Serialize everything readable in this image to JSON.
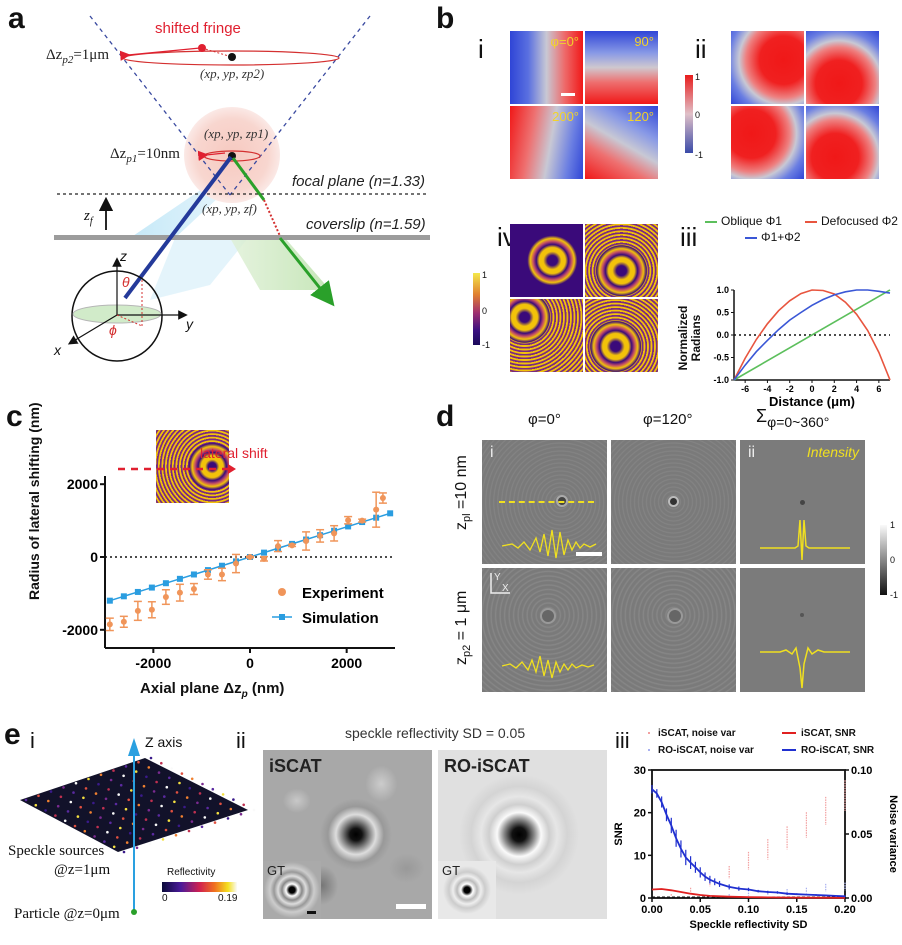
{
  "panel_labels": {
    "a": "a",
    "b": "b",
    "c": "c",
    "d": "d",
    "e": "e"
  },
  "panel_a": {
    "shifted_fringe": "shifted fringe",
    "dz_p2": "Δz",
    "dz_p2_sub": "p2",
    "dz_p2_val": "=1μm",
    "coord_p2": "(x",
    "coord_p2_full": "(xp, yp, zp2)",
    "coord_p1_full": "(xp, yp, zp1)",
    "coord_f_full": "(xp, yp, zf)",
    "dz_p1": "Δz",
    "dz_p1_sub": "p1",
    "dz_p1_val": "=10nm",
    "focal_plane": "focal plane (n=1.33)",
    "coverslip": "coverslip (n=1.59)",
    "zf": "z",
    "zf_sub": "f",
    "axis_z": "z",
    "axis_y": "y",
    "axis_x": "x",
    "theta": "θ",
    "phi": "ϕ"
  },
  "panel_b": {
    "sub_i": "i",
    "sub_ii": "ii",
    "sub_iii": "iii",
    "sub_iv": "iv",
    "tiles_i": [
      "φ=0°",
      "90°",
      "200°",
      "120°"
    ],
    "colorbar_i": {
      "max": "1",
      "mid": "0",
      "min": "-1"
    },
    "colorbar_iv": {
      "max": "1",
      "mid": "0",
      "min": "-1"
    }
  },
  "chart_data": [
    {
      "id": "b-iii",
      "type": "line",
      "title": "",
      "xlabel": "Distance (μm)",
      "ylabel": "Normalized Radians",
      "xlim": [
        -7,
        7
      ],
      "ylim": [
        -1.0,
        1.0
      ],
      "xticks": [
        "-6",
        "-4",
        "-2",
        "0",
        "2",
        "4",
        "6"
      ],
      "yticks": [
        "-1.0",
        "-0.5",
        "0.0",
        "0.5",
        "1.0"
      ],
      "reference_line": {
        "y": 0,
        "style": "dotted"
      },
      "legend": "top",
      "series": [
        {
          "name": "Oblique Φ1",
          "color": "#5cbf5c",
          "x": [
            -7,
            7
          ],
          "y": [
            -1.0,
            1.0
          ]
        },
        {
          "name": "Defocused Φ2",
          "color": "#e8553f",
          "x": [
            -7,
            -6,
            -5,
            -4,
            -3,
            -2,
            -1,
            0,
            1,
            2,
            3,
            4,
            5,
            6,
            7
          ],
          "y": [
            -1.0,
            -0.52,
            -0.1,
            0.25,
            0.54,
            0.76,
            0.92,
            1.0,
            0.99,
            0.91,
            0.73,
            0.46,
            0.1,
            -0.39,
            -1.0
          ]
        },
        {
          "name": "Φ1+Φ2",
          "color": "#3a57d6",
          "x": [
            -7,
            -6,
            -5,
            -4,
            -3,
            -2,
            -1,
            0,
            1,
            2,
            3,
            4,
            5,
            6,
            7
          ],
          "y": [
            -1.0,
            -0.67,
            -0.37,
            -0.12,
            0.12,
            0.33,
            0.5,
            0.66,
            0.79,
            0.89,
            0.96,
            1.0,
            1.0,
            0.97,
            0.93
          ]
        }
      ]
    },
    {
      "id": "c",
      "type": "scatter",
      "title": "",
      "xlabel": "Axial plane Δz",
      "xlabel_sub": "p",
      "xlabel_unit": " (nm)",
      "ylabel": "Radius of lateral shifting (nm)",
      "xlim": [
        -3000,
        3000
      ],
      "ylim": [
        -2500,
        2500
      ],
      "xticks": [
        "-2000",
        "0",
        "2000"
      ],
      "yticks": [
        "-2000",
        "0",
        "2000"
      ],
      "reference_line": {
        "y": 0,
        "style": "dotted"
      },
      "legend": "bottom-right",
      "inset_annotation": "lateral shift",
      "series": [
        {
          "name": "Experiment",
          "color": "#f0955a",
          "marker": "circle",
          "x": [
            -2900,
            -2610,
            -2320,
            -2030,
            -1740,
            -1450,
            -1160,
            -870,
            -580,
            -290,
            0,
            290,
            580,
            870,
            1160,
            1450,
            1740,
            2030,
            2320,
            2610,
            2750
          ],
          "y": [
            -1850,
            -1780,
            -1480,
            -1450,
            -1100,
            -980,
            -880,
            -480,
            -480,
            -180,
            0,
            -50,
            300,
            320,
            440,
            580,
            650,
            1010,
            1000,
            1300,
            1620
          ],
          "err": [
            170,
            150,
            260,
            220,
            200,
            230,
            150,
            130,
            170,
            250,
            20,
            60,
            150,
            30,
            250,
            170,
            210,
            100,
            40,
            480,
            140
          ]
        },
        {
          "name": "Simulation",
          "color": "#2a9de0",
          "marker": "square",
          "x": [
            -2900,
            -2610,
            -2320,
            -2030,
            -1740,
            -1450,
            -1160,
            -870,
            -580,
            -290,
            0,
            290,
            580,
            870,
            1160,
            1450,
            1740,
            2030,
            2320,
            2610,
            2900
          ],
          "y": [
            -1200,
            -1080,
            -960,
            -840,
            -720,
            -600,
            -480,
            -360,
            -240,
            -120,
            0,
            120,
            240,
            360,
            480,
            600,
            720,
            840,
            960,
            1080,
            1200
          ]
        }
      ]
    },
    {
      "id": "e-iii",
      "type": "line",
      "title": "",
      "xlabel": "Speckle reflectivity SD",
      "ylabel": "SNR",
      "ylabel_right": "Noise variance",
      "xlim": [
        0,
        0.2
      ],
      "ylim": [
        0,
        30
      ],
      "ylim_right": [
        0,
        0.1
      ],
      "xticks": [
        "0.00",
        "0.05",
        "0.10",
        "0.15",
        "0.20"
      ],
      "yticks": [
        "0",
        "10",
        "20",
        "30"
      ],
      "yticks_right": [
        "0.00",
        "0.05",
        "0.10"
      ],
      "legend": "top",
      "series": [
        {
          "name": "iSCAT, noise var",
          "axis": "right",
          "color": "#f2a0a0",
          "style": "errorbar",
          "x": [
            0.0,
            0.02,
            0.04,
            0.06,
            0.08,
            0.1,
            0.12,
            0.14,
            0.16,
            0.18,
            0.2
          ],
          "y": [
            0.0,
            0.002,
            0.006,
            0.012,
            0.02,
            0.029,
            0.038,
            0.047,
            0.057,
            0.068,
            0.08
          ],
          "err": [
            0.0,
            0.001,
            0.002,
            0.003,
            0.005,
            0.007,
            0.008,
            0.009,
            0.01,
            0.011,
            0.012
          ]
        },
        {
          "name": "RO-iSCAT, noise var",
          "axis": "right",
          "color": "#a8b0f0",
          "style": "errorbar",
          "x": [
            0.0,
            0.02,
            0.04,
            0.06,
            0.08,
            0.1,
            0.12,
            0.14,
            0.16,
            0.18,
            0.2
          ],
          "y": [
            0.0,
            0.0,
            0.0005,
            0.001,
            0.002,
            0.003,
            0.004,
            0.005,
            0.006,
            0.008,
            0.009
          ],
          "err": [
            0.0,
            0.0,
            0.0003,
            0.0005,
            0.001,
            0.0012,
            0.0015,
            0.002,
            0.002,
            0.003,
            0.003
          ]
        },
        {
          "name": "iSCAT, SNR",
          "axis": "left",
          "color": "#e02020",
          "x": [
            0.0,
            0.01,
            0.02,
            0.03,
            0.04,
            0.05,
            0.06,
            0.08,
            0.1,
            0.12,
            0.15,
            0.2
          ],
          "y": [
            2.0,
            2.1,
            1.8,
            1.4,
            1.0,
            0.7,
            0.5,
            0.3,
            0.2,
            0.15,
            0.1,
            0.05
          ]
        },
        {
          "name": "RO-iSCAT, SNR",
          "axis": "left",
          "color": "#2030d0",
          "style": "errorbar",
          "x": [
            0.0,
            0.005,
            0.01,
            0.015,
            0.02,
            0.025,
            0.03,
            0.035,
            0.04,
            0.045,
            0.05,
            0.055,
            0.06,
            0.065,
            0.07,
            0.08,
            0.09,
            0.1,
            0.11,
            0.12,
            0.13,
            0.14,
            0.15,
            0.16,
            0.17,
            0.18,
            0.19,
            0.2
          ],
          "y": [
            25.5,
            24.5,
            22.5,
            19.5,
            17,
            14,
            11.5,
            9.5,
            8.3,
            7.2,
            6.0,
            5.0,
            4.3,
            3.8,
            3.3,
            2.6,
            2.2,
            2.0,
            1.6,
            1.4,
            1.3,
            1.0,
            0.9,
            0.8,
            0.7,
            0.6,
            0.5,
            0.4
          ],
          "err": [
            1.0,
            1.0,
            1.3,
            1.5,
            1.8,
            2.0,
            2.0,
            1.8,
            1.5,
            1.3,
            1.2,
            1.0,
            0.9,
            0.8,
            0.7,
            0.6,
            0.5,
            0.4,
            0.3,
            0.3,
            0.3,
            0.3,
            0.2,
            0.2,
            0.2,
            0.2,
            0.2,
            0.2
          ]
        }
      ]
    }
  ],
  "panel_d": {
    "col_headers": [
      "φ=0°",
      "φ=120°",
      "Σ"
    ],
    "col3_sub": "φ=0~360°",
    "row_labels": [
      "z",
      "z"
    ],
    "row1_sub": "pl",
    "row1_val": " =10 nm",
    "row2_sub": "p2",
    "row2_val": " = 1 μm",
    "tile_i": "i",
    "tile_ii": "ii",
    "intensity": "Intensity",
    "axis_y": "Y",
    "axis_x": "X",
    "colorbar": {
      "max": "1",
      "mid": "0",
      "min": "-1"
    }
  },
  "panel_e": {
    "sub_i": "i",
    "sub_ii": "ii",
    "sub_iii": "iii",
    "z_axis": "Z axis",
    "speckle": "Speckle sources",
    "speckle_z": "@z=1μm",
    "particle": "Particle @z=0μm",
    "reflectivity": "Reflectivity",
    "refl_min": "0",
    "refl_max": "0.19",
    "sd_title": "speckle reflectivity SD = 0.05",
    "iscat": "iSCAT",
    "ro_iscat": "RO-iSCAT",
    "gt": "GT",
    "legend": [
      "iSCAT, noise var",
      "RO-iSCAT, noise var",
      "iSCAT, SNR",
      "RO-iSCAT, SNR"
    ]
  }
}
